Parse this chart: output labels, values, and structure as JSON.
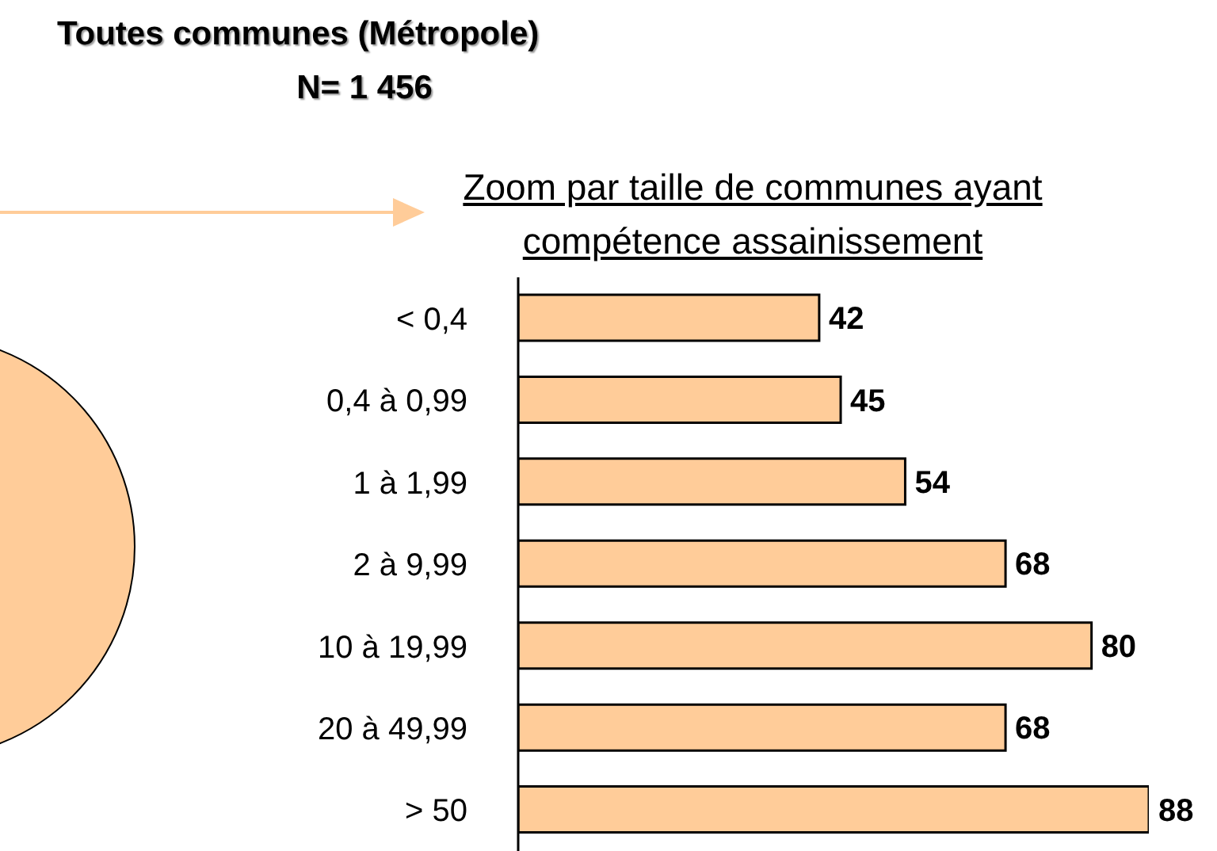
{
  "chart_data": {
    "type": "bar",
    "orientation": "horizontal",
    "title": "Toutes communes (Métropole)",
    "subtitle": "N= 1 456",
    "annotations": [
      "Zoom par taille de communes ayant compétence assainissement"
    ],
    "categories": [
      "< 0,4",
      "0,4 à 0,99",
      "1 à 1,99",
      "2 à 9,99",
      "10 à 19,99",
      "20 à 49,99",
      "> 50"
    ],
    "values": [
      42,
      45,
      54,
      68,
      80,
      68,
      88
    ],
    "color": "#ffcc99",
    "data_labels": true
  }
}
